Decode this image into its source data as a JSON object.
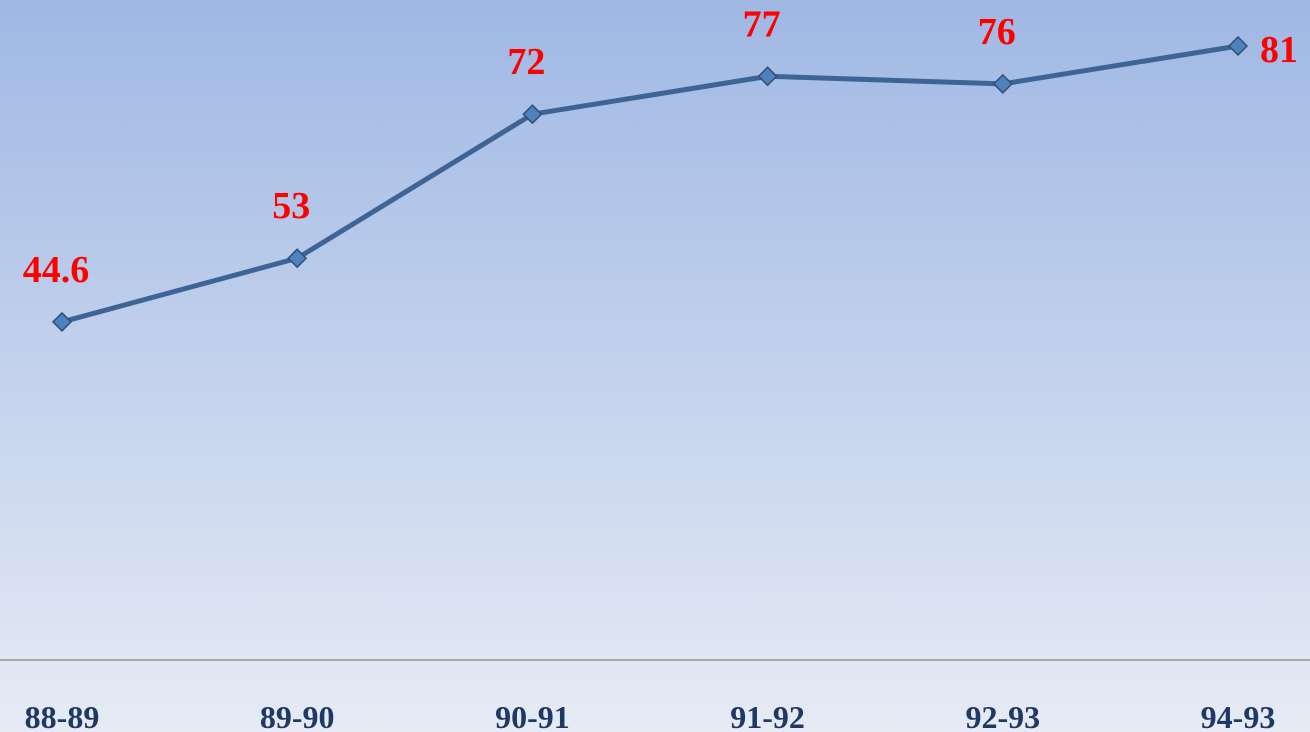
{
  "chart_data": {
    "type": "line",
    "categories": [
      "88-89",
      "89-90",
      "90-91",
      "91-92",
      "92-93",
      "94-93"
    ],
    "series": [
      {
        "color": "#3e6496",
        "values": [
          44.6,
          53,
          72,
          77,
          76,
          81
        ]
      }
    ],
    "ylim": [
      0,
      87
    ],
    "label_color": "#ff0000"
  }
}
